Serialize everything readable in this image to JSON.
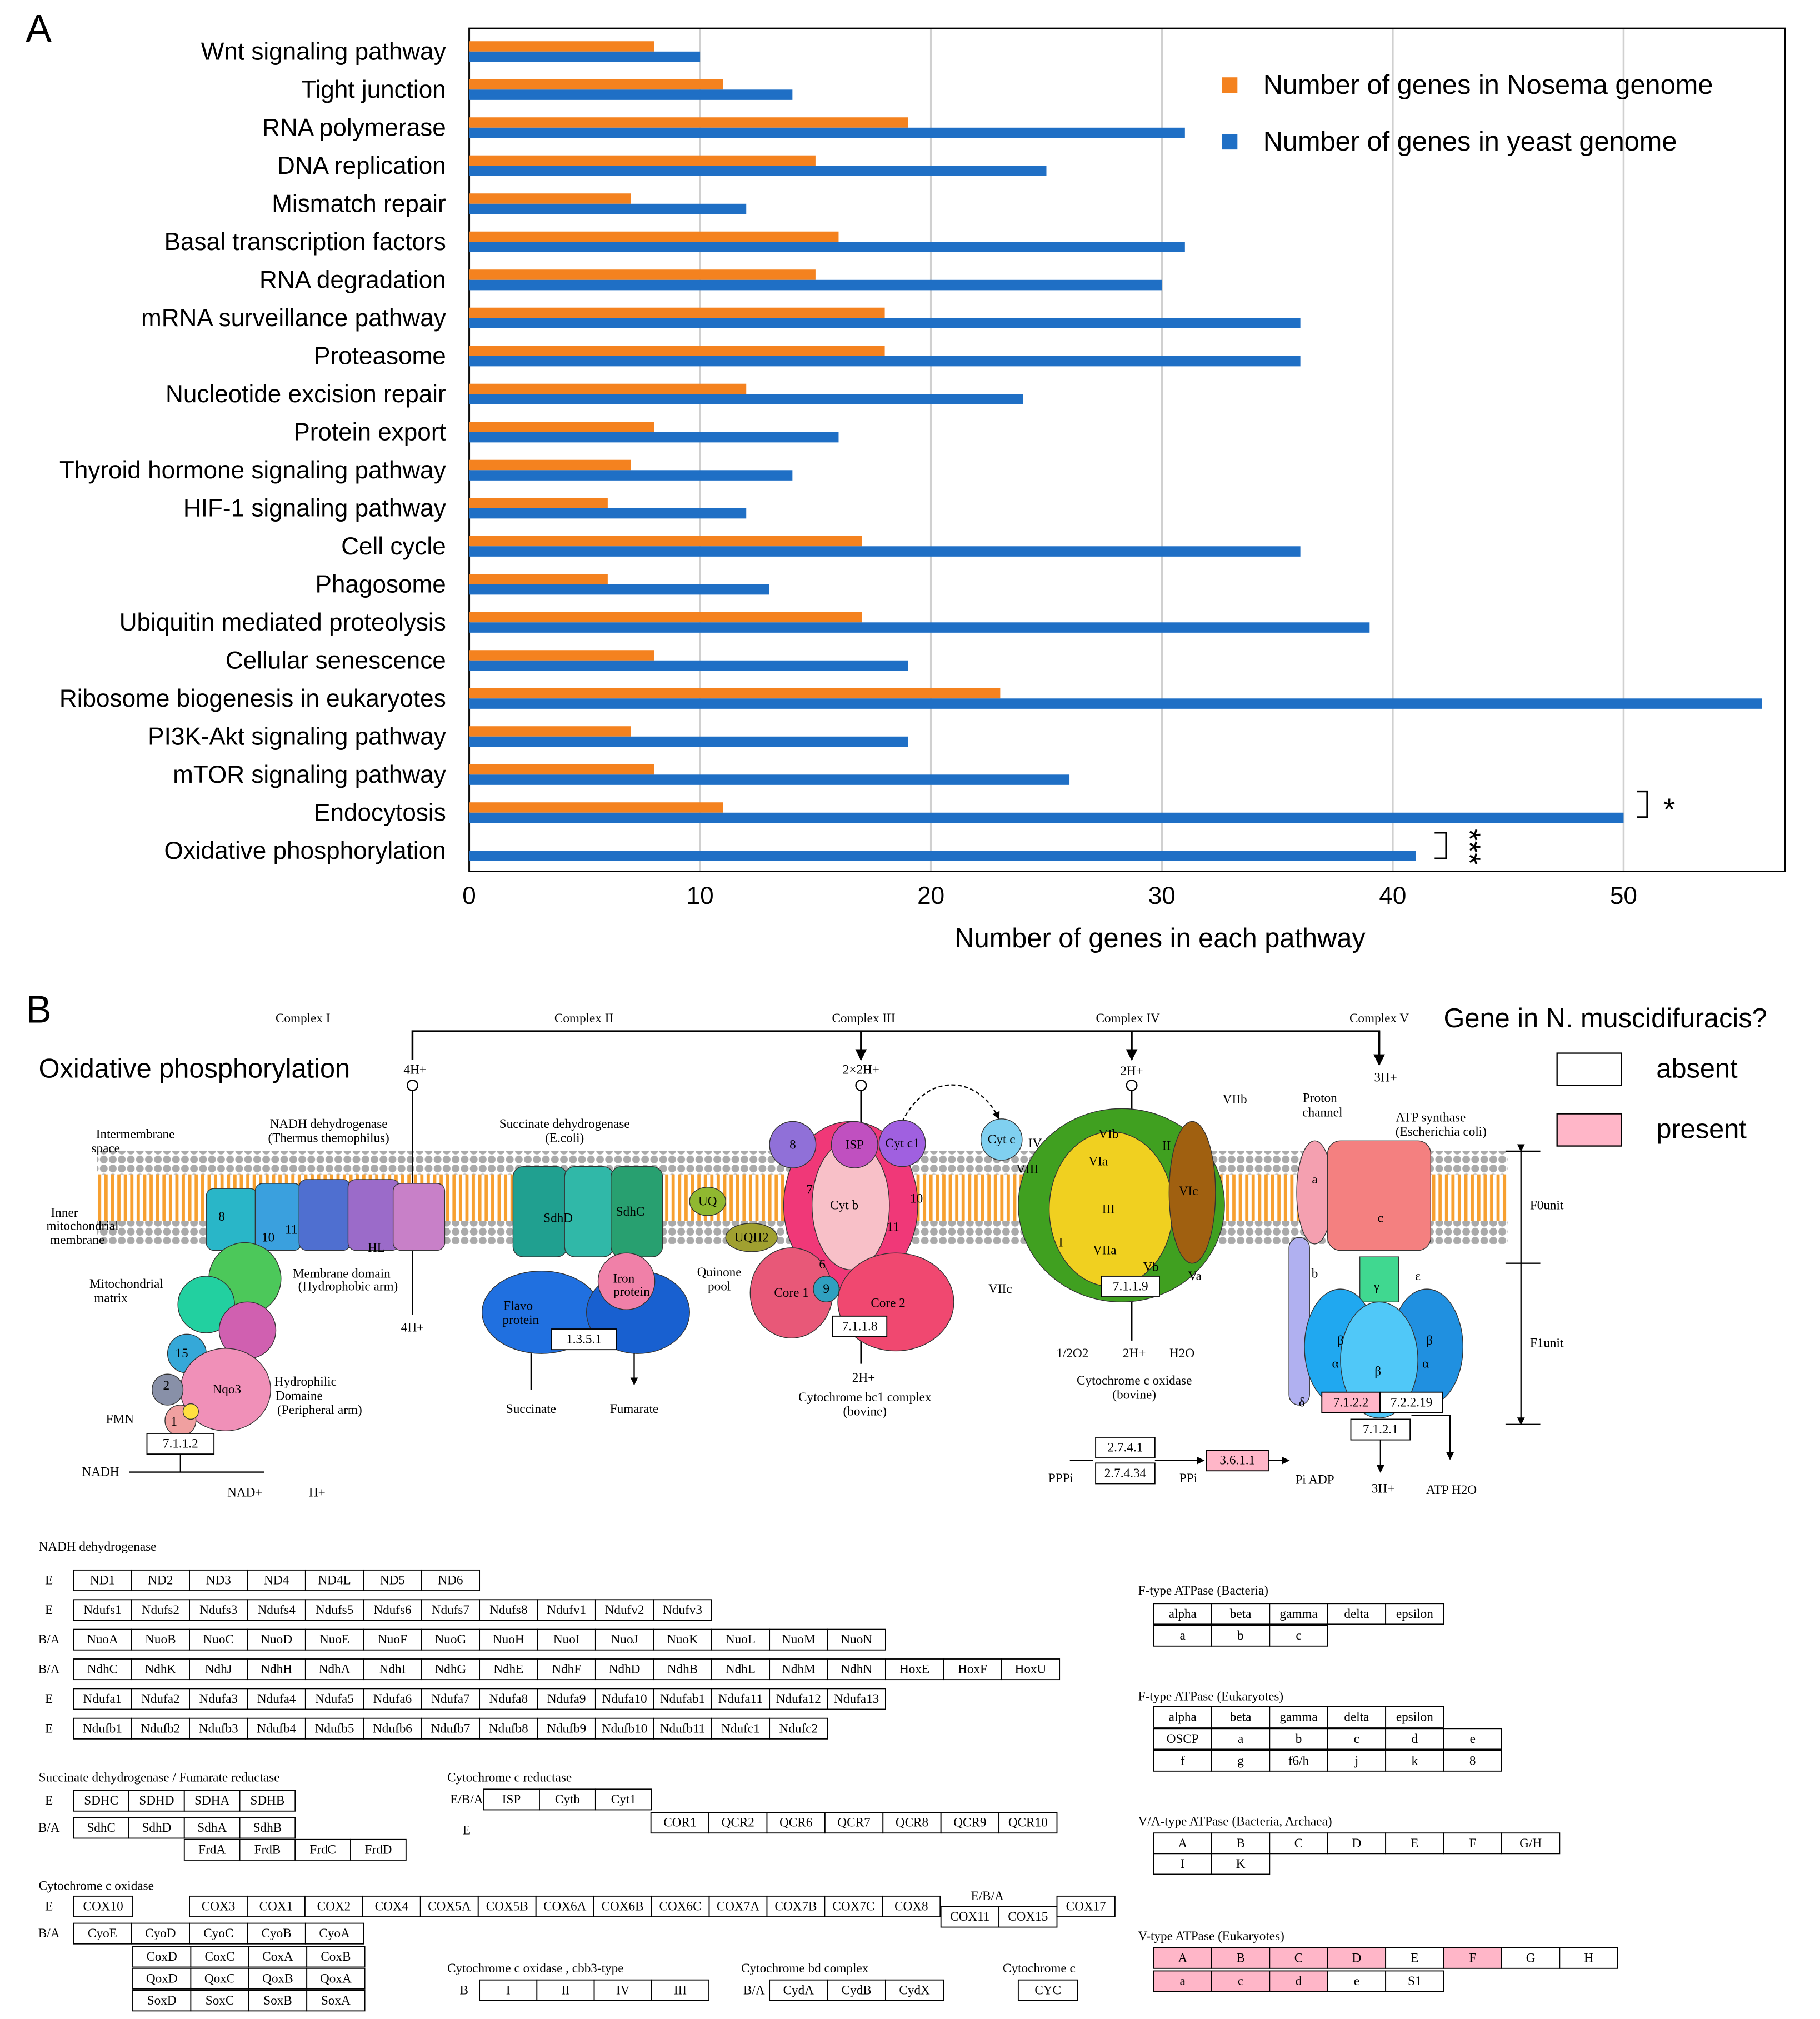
{
  "panel_labels": [
    "A",
    "B"
  ],
  "chart_data": {
    "type": "bar",
    "orientation": "horizontal",
    "categories": [
      "Wnt signaling pathway",
      "Tight junction",
      "RNA polymerase",
      "DNA replication",
      "Mismatch repair",
      "Basal transcription factors",
      "RNA degradation",
      "mRNA surveillance pathway",
      "Proteasome",
      "Nucleotide excision repair",
      "Protein export",
      "Thyroid hormone signaling pathway",
      "HIF-1 signaling pathway",
      "Cell cycle",
      "Phagosome",
      "Ubiquitin mediated proteolysis",
      "Cellular senescence",
      "Ribosome biogenesis in eukaryotes",
      "PI3K-Akt signaling pathway",
      "mTOR signaling pathway",
      "Endocytosis",
      "Oxidative phosphorylation"
    ],
    "series": [
      {
        "name": "Number of genes in Nosema genome",
        "color": "#f4821f",
        "values": [
          8,
          11,
          19,
          15,
          7,
          16,
          15,
          18,
          18,
          12,
          8,
          7,
          6,
          17,
          6,
          17,
          8,
          23,
          7,
          8,
          11,
          0
        ]
      },
      {
        "name": "Number of genes in yeast genome",
        "color": "#1f6fc5",
        "values": [
          10,
          14,
          31,
          25,
          12,
          31,
          30,
          36,
          36,
          24,
          16,
          14,
          12,
          36,
          13,
          39,
          19,
          56,
          19,
          26,
          50,
          41
        ]
      }
    ],
    "x_label": "Number of genes in each pathway",
    "xlim": [
      0,
      57
    ],
    "xticks": [
      0,
      10,
      20,
      30,
      40,
      50
    ],
    "grid": true,
    "legend": "upper right",
    "annotations": [
      "*",
      "***"
    ]
  },
  "diagram": {
    "title": "Oxidative phosphorylation",
    "legend_title": "Gene in N. muscidifuracis?",
    "legend": [
      {
        "label": "absent",
        "color": "#ffffff"
      },
      {
        "label": "present",
        "color": "#ffb6c8"
      }
    ],
    "labels": [
      "Complex I",
      "Complex II",
      "Complex III",
      "Complex IV",
      "Complex V",
      "4H+",
      "2×2H+",
      "2H+",
      "3H+",
      "Intermembrane",
      "space",
      "NADH dehydrogenase",
      "(Thermus themophilus)",
      "Succinate dehydrogenase",
      "(E.coli)",
      "Inner",
      "mitochondrial",
      "membrane",
      "Mitochondrial",
      "matrix",
      "Membrane domain",
      "(Hydrophobic arm)",
      "4H+",
      "Quinone",
      "pool",
      "Hydrophilic",
      "Domaine",
      "(Peripheral arm)",
      "FMN",
      "NADH",
      "NAD+",
      "H+",
      "Succinate",
      "Fumarate",
      "2H+",
      "Cytochrome bc1 complex",
      "(bovine)",
      "1/2O2",
      "2H+",
      "H2O",
      "Cytochrome c oxidase",
      "(bovine)",
      "Proton",
      "channel",
      "ATP synthase",
      "(Escherichia coli)",
      "F0unit",
      "F1unit",
      "PPPi",
      "PPi",
      "Pi ADP",
      "3H+",
      "ATP H2O",
      "Nqo3",
      "15",
      "2",
      "1",
      "10",
      "11",
      "8",
      "HL",
      "SdhD",
      "SdhC",
      "UQ",
      "UQH2",
      "Flavo",
      "protein",
      "Iron",
      "protein",
      "Cyt b",
      "ISP",
      "Cyt c1",
      "8",
      "7",
      "6",
      "9",
      "11",
      "10",
      "Core 1",
      "Core 2",
      "Cyt c",
      "III",
      "VIa",
      "VIb",
      "VIIa",
      "Vb",
      "Va",
      "VIc",
      "VIIb",
      "VIIc",
      "VIII",
      "I",
      "II",
      "IV",
      "a",
      "b",
      "c",
      "γ",
      "ε",
      "β",
      "β",
      "α",
      "α",
      "β",
      "δ"
    ],
    "enzymes": {
      "ec": [
        "7.1.1.2",
        "1.3.5.1",
        "7.1.1.8",
        "7.1.1.9",
        "7.1.2.2",
        "7.2.2.19",
        "7.1.2.1",
        "2.7.4.1",
        "2.7.4.34",
        "3.6.1.1"
      ],
      "present": [
        false,
        false,
        false,
        false,
        true,
        false,
        false,
        false,
        false,
        true
      ]
    },
    "tables": [
      {
        "title": "NADH dehydrogenase",
        "rows": [
          {
            "prefix": "E",
            "cells": [
              "ND1",
              "ND2",
              "ND3",
              "ND4",
              "ND4L",
              "ND5",
              "ND6"
            ]
          },
          {
            "prefix": "E",
            "cells": [
              "Ndufs1",
              "Ndufs2",
              "Ndufs3",
              "Ndufs4",
              "Ndufs5",
              "Ndufs6",
              "Ndufs7",
              "Ndufs8",
              "Ndufv1",
              "Ndufv2",
              "Ndufv3"
            ]
          },
          {
            "prefix": "B/A",
            "cells": [
              "NuoA",
              "NuoB",
              "NuoC",
              "NuoD",
              "NuoE",
              "NuoF",
              "NuoG",
              "NuoH",
              "NuoI",
              "NuoJ",
              "NuoK",
              "NuoL",
              "NuoM",
              "NuoN"
            ]
          },
          {
            "prefix": "B/A",
            "cells": [
              "NdhC",
              "NdhK",
              "NdhJ",
              "NdhH",
              "NdhA",
              "NdhI",
              "NdhG",
              "NdhE",
              "NdhF",
              "NdhD",
              "NdhB",
              "NdhL",
              "NdhM",
              "NdhN",
              "HoxE",
              "HoxF",
              "HoxU"
            ]
          },
          {
            "prefix": "E",
            "cells": [
              "Ndufa1",
              "Ndufa2",
              "Ndufa3",
              "Ndufa4",
              "Ndufa5",
              "Ndufa6",
              "Ndufa7",
              "Ndufa8",
              "Ndufa9",
              "Ndufa10",
              "Ndufab1",
              "Ndufa11",
              "Ndufa12",
              "Ndufa13"
            ]
          },
          {
            "prefix": "E",
            "cells": [
              "Ndufb1",
              "Ndufb2",
              "Ndufb3",
              "Ndufb4",
              "Ndufb5",
              "Ndufb6",
              "Ndufb7",
              "Ndufb8",
              "Ndufb9",
              "Ndufb10",
              "Ndufb11",
              "Ndufc1",
              "Ndufc2"
            ]
          }
        ]
      },
      {
        "title": "Succinate dehydrogenase / Fumarate reductase",
        "rows": [
          {
            "prefix": "E",
            "cells": [
              "SDHC",
              "SDHD",
              "SDHA",
              "SDHB"
            ]
          },
          {
            "prefix": "B/A",
            "cells": [
              "SdhC",
              "SdhD",
              "SdhA",
              "SdhB"
            ]
          },
          {
            "cells": [
              "FrdA",
              "FrdB",
              "FrdC",
              "FrdD"
            ]
          }
        ]
      },
      {
        "title": "Cytochrome c reductase",
        "rows": [
          {
            "prefix": "E/B/A",
            "cells": [
              "ISP",
              "Cytb",
              "Cyt1"
            ]
          },
          {
            "prefix": "E",
            "cells": [
              "COR1",
              "QCR2",
              "QCR6",
              "QCR7",
              "QCR8",
              "QCR9",
              "QCR10"
            ]
          }
        ]
      },
      {
        "title": "Cytochrome c oxidase",
        "rows": [
          {
            "prefix": "E",
            "cells": [
              "COX10"
            ]
          },
          {
            "cells": [
              "COX3",
              "COX1",
              "COX2",
              "COX4",
              "COX5A",
              "COX5B",
              "COX6A",
              "COX6B",
              "COX6C",
              "COX7A",
              "COX7B",
              "COX7C",
              "COX8"
            ]
          },
          {
            "prefix": "E/B/A",
            "cells": [
              "COX11",
              "COX15"
            ]
          },
          {
            "cells": [
              "COX17"
            ]
          },
          {
            "prefix": "B/A",
            "cells": [
              "CyoE",
              "CyoD",
              "CyoC",
              "CyoB",
              "CyoA"
            ]
          },
          {
            "cells": [
              "CoxD",
              "CoxC",
              "CoxA",
              "CoxB"
            ]
          },
          {
            "cells": [
              "QoxD",
              "QoxC",
              "QoxB",
              "QoxA"
            ]
          },
          {
            "cells": [
              "SoxD",
              "SoxC",
              "SoxB",
              "SoxA"
            ]
          }
        ]
      },
      {
        "title": "Cytochrome c oxidase , cbb3-type",
        "rows": [
          {
            "prefix": "B",
            "cells": [
              "I",
              "II",
              "IV",
              "III"
            ]
          }
        ]
      },
      {
        "title": "Cytochrome bd complex",
        "rows": [
          {
            "prefix": "B/A",
            "cells": [
              "CydA",
              "CydB",
              "CydX"
            ]
          }
        ]
      },
      {
        "title": "Cytochrome c",
        "rows": [
          {
            "cells": [
              "CYC"
            ]
          }
        ]
      },
      {
        "title": "F-type ATPase (Bacteria)",
        "rows": [
          {
            "cells": [
              "alpha",
              "beta",
              "gamma",
              "delta",
              "epsilon"
            ]
          },
          {
            "cells": [
              "a",
              "b",
              "c"
            ]
          }
        ]
      },
      {
        "title": "F-type ATPase (Eukaryotes)",
        "rows": [
          {
            "cells": [
              "alpha",
              "beta",
              "gamma",
              "delta",
              "epsilon"
            ]
          },
          {
            "cells": [
              "OSCP",
              "a",
              "b",
              "c",
              "d",
              "e"
            ]
          },
          {
            "cells": [
              "f",
              "g",
              "f6/h",
              "j",
              "k",
              "8"
            ]
          }
        ]
      },
      {
        "title": "V/A-type ATPase (Bacteria, Archaea)",
        "rows": [
          {
            "cells": [
              "A",
              "B",
              "C",
              "D",
              "E",
              "F",
              "G/H"
            ]
          },
          {
            "cells": [
              "I",
              "K"
            ]
          }
        ]
      },
      {
        "title": "V-type ATPase (Eukaryotes)",
        "rows": [
          {
            "cells": [
              "A",
              "B",
              "C",
              "D",
              "E",
              "F",
              "G",
              "H"
            ],
            "present": [
              true,
              true,
              true,
              true,
              false,
              true,
              false,
              false
            ]
          },
          {
            "cells": [
              "a",
              "c",
              "d",
              "e",
              "S1"
            ],
            "present": [
              true,
              true,
              true,
              false,
              false
            ]
          }
        ]
      }
    ]
  }
}
